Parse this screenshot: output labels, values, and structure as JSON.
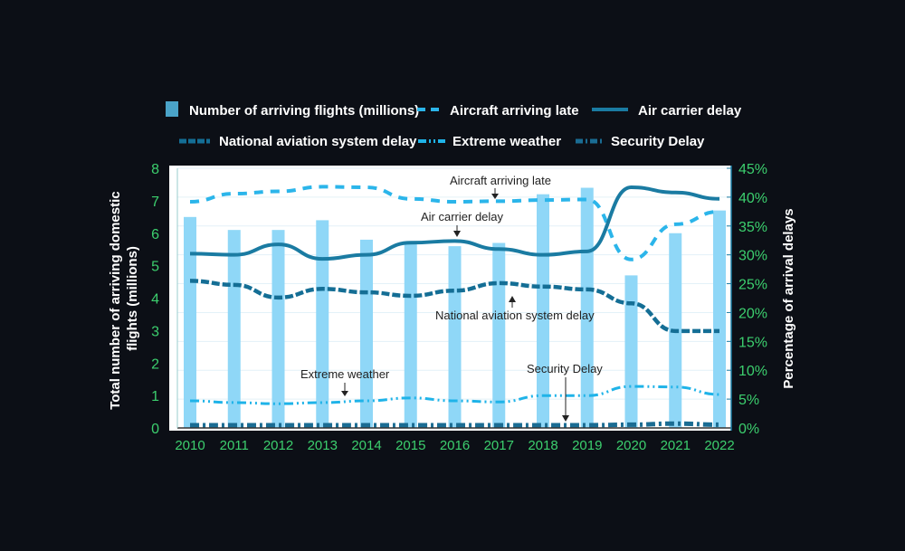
{
  "chart_data": {
    "type": "bar+line",
    "categories": [
      "2010",
      "2011",
      "2012",
      "2013",
      "2014",
      "2015",
      "2016",
      "2017",
      "2018",
      "2019",
      "2020",
      "2021",
      "2022"
    ],
    "bars": {
      "name": "Number of arriving flights (millions)",
      "axis": "left",
      "color": "#8fd7f7",
      "values": [
        6.5,
        6.1,
        6.1,
        6.4,
        5.8,
        5.7,
        5.6,
        5.7,
        7.2,
        7.4,
        4.7,
        6.0,
        6.7
      ]
    },
    "series": [
      {
        "name": "Aircraft arriving late",
        "axis": "right",
        "style": "dashed",
        "color": "#2bb5ea",
        "values": [
          39.2,
          40.6,
          41.0,
          41.8,
          41.7,
          39.7,
          39.2,
          39.3,
          39.5,
          39.6,
          29.2,
          35.3,
          37.5
        ]
      },
      {
        "name": "Air carrier delay",
        "axis": "right",
        "style": "solid",
        "color": "#1a7ba2",
        "values": [
          30.2,
          30.0,
          31.8,
          29.3,
          30.0,
          32.1,
          32.4,
          31.0,
          30.0,
          30.6,
          41.7,
          40.8,
          39.7
        ]
      },
      {
        "name": "National aviation system delay",
        "axis": "right",
        "style": "dashed-heavy",
        "color": "#146e95",
        "values": [
          25.5,
          24.8,
          22.6,
          24.1,
          23.5,
          22.9,
          23.8,
          25.1,
          24.5,
          24.0,
          21.6,
          16.8,
          16.8
        ]
      },
      {
        "name": "Extreme weather",
        "axis": "right",
        "style": "dash-dot-dot",
        "color": "#1fb3e8",
        "values": [
          4.7,
          4.4,
          4.2,
          4.4,
          4.7,
          5.2,
          4.7,
          4.5,
          5.6,
          5.6,
          7.2,
          7.1,
          5.8
        ]
      },
      {
        "name": "Security Delay",
        "axis": "right",
        "style": "dash-dot",
        "color": "#1a6c93",
        "values": [
          0.6,
          0.6,
          0.6,
          0.6,
          0.6,
          0.6,
          0.6,
          0.6,
          0.6,
          0.6,
          0.7,
          0.9,
          0.7
        ]
      }
    ],
    "ylabel": "Total number of arriving domestic flights (millions)",
    "ylabel_lines": [
      "Total number of arriving domestic",
      "flights (millions)"
    ],
    "y2label": "Percentage of arrival delays",
    "ylim": [
      0,
      8
    ],
    "y2lim": [
      0,
      45
    ],
    "yticks": [
      "0",
      "1",
      "2",
      "3",
      "4",
      "5",
      "6",
      "7",
      "8"
    ],
    "y2ticks": [
      "0%",
      "5%",
      "10%",
      "15%",
      "20%",
      "25%",
      "30%",
      "35%",
      "40%",
      "45%"
    ],
    "grid": true,
    "legend": "top",
    "annotations": [
      "Aircraft arriving late",
      "Air carrier delay",
      "National aviation system delay",
      "Extreme weather",
      "Security Delay"
    ],
    "tick_color": "#3ccf6e"
  }
}
